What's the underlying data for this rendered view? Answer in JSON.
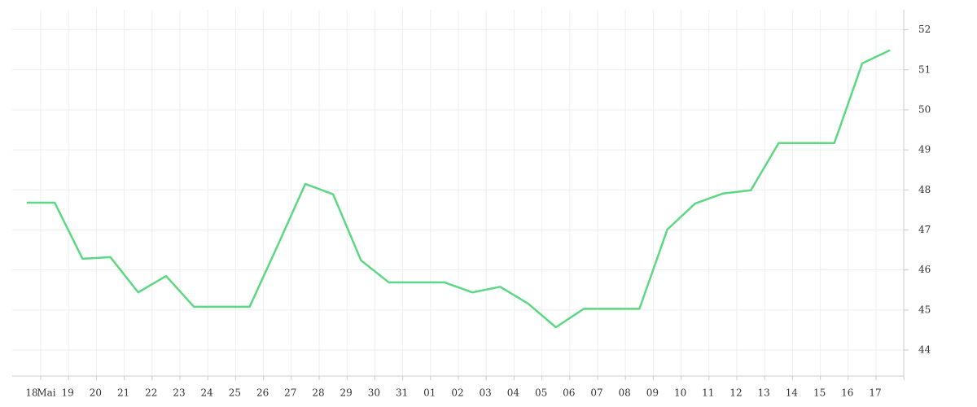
{
  "chart_data": {
    "type": "line",
    "categories": [
      "18",
      "Mai",
      "19",
      "20",
      "21",
      "22",
      "23",
      "24",
      "25",
      "26",
      "27",
      "28",
      "29",
      "30",
      "31",
      "01",
      "02",
      "03",
      "04",
      "05",
      "06",
      "07",
      "08",
      "09",
      "10",
      "11",
      "12",
      "13",
      "14",
      "15",
      "16",
      "17"
    ],
    "series": [
      {
        "color": "#5dd882",
        "values": [
          47.68,
          47.68,
          46.28,
          46.32,
          45.44,
          45.85,
          45.08,
          45.08,
          45.08,
          46.6,
          48.15,
          47.89,
          46.24,
          45.69,
          45.69,
          45.69,
          45.44,
          45.58,
          45.16,
          44.57,
          45.03,
          45.03,
          45.03,
          47.01,
          47.66,
          47.91,
          47.99,
          49.17,
          49.17,
          49.17,
          51.16,
          51.49
        ]
      }
    ],
    "ylim": [
      43.35,
      52.5
    ],
    "yticks": [
      44,
      45,
      46,
      47,
      48,
      49,
      50,
      51,
      52
    ],
    "grid": true
  }
}
